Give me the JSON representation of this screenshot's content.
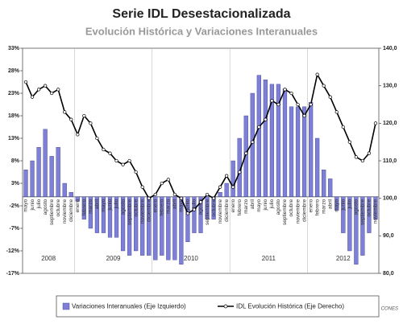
{
  "chart_data": {
    "type": "bar-line",
    "title": "Serie IDL Desestacionalizada",
    "subtitle": "Evolución Histórica y Variaciones Interanuales",
    "source": "CONES",
    "categories": [
      "mayo",
      "junio",
      "julio",
      "agosto",
      "septiembre",
      "octubre",
      "noviembre",
      "diciembre",
      "enero",
      "febrero",
      "marzo",
      "abril",
      "mayo",
      "junio",
      "julio",
      "agosto",
      "septiembre",
      "octubre",
      "noviembre",
      "diciembre",
      "enero",
      "febrero",
      "marzo",
      "abril",
      "mayo",
      "junio",
      "julio",
      "agosto",
      "septiembre",
      "octubre",
      "noviembre",
      "diciembre",
      "enero",
      "febrero",
      "marzo",
      "abril",
      "mayo",
      "junio",
      "julio",
      "agosto",
      "septiembre",
      "octubre",
      "noviembre",
      "diciembre",
      "enero",
      "febrero",
      "marzo",
      "abril",
      "mayo",
      "junio",
      "julio",
      "agosto",
      "septiembre",
      "octubre",
      "noviembre"
    ],
    "years": [
      "2008",
      "2009",
      "2010",
      "2011",
      "2012"
    ],
    "series": [
      {
        "name": "Variaciones Interanuales (Eje Izquierdo)",
        "color": "#7d80d6",
        "axis": "y",
        "values": [
          6,
          8,
          11,
          15,
          9,
          11,
          3,
          1,
          -1,
          -5,
          -7,
          -8,
          -8,
          -9,
          -9,
          -12,
          -13,
          -12,
          -13,
          -13,
          -14,
          -13,
          -14,
          -14,
          -15,
          -10,
          -8,
          -8,
          -5,
          -5,
          1,
          3,
          8,
          13,
          18,
          23,
          27,
          26,
          25,
          25,
          24,
          20,
          20,
          20,
          21,
          13,
          6,
          4,
          -3,
          -8,
          -12,
          -15,
          -13,
          -8,
          -5
        ]
      },
      {
        "name": "IDL Evolución Histórica (Eje Derecho)",
        "color": "#000000",
        "axis": "y2",
        "values": [
          131,
          127,
          129,
          130,
          128,
          129,
          123,
          121,
          117,
          122,
          120,
          116,
          113,
          112,
          110,
          109,
          110,
          107,
          103,
          100,
          101,
          104,
          105,
          101,
          100,
          96,
          97,
          99,
          101,
          100,
          103,
          106,
          103,
          107,
          112,
          115,
          119,
          121,
          126,
          125,
          129,
          128,
          125,
          122,
          125,
          133,
          130,
          127,
          123,
          119,
          115,
          111,
          110,
          112,
          120
        ]
      }
    ],
    "ylim": [
      -17,
      33
    ],
    "yticks": [
      {
        "value": 33,
        "label": "33%"
      },
      {
        "value": 28,
        "label": "28%"
      },
      {
        "value": 23,
        "label": "23%"
      },
      {
        "value": 18,
        "label": "18%"
      },
      {
        "value": 13,
        "label": "13%"
      },
      {
        "value": 8,
        "label": "8%"
      },
      {
        "value": 3,
        "label": "3%"
      },
      {
        "value": -2,
        "label": "-2%"
      },
      {
        "value": -7,
        "label": "-7%"
      },
      {
        "value": -12,
        "label": "-12%"
      },
      {
        "value": -17,
        "label": "-17%"
      }
    ],
    "y2lim": [
      80,
      140
    ],
    "y2ticks": [
      {
        "value": 140,
        "label": "140,0"
      },
      {
        "value": 130,
        "label": "130,0"
      },
      {
        "value": 120,
        "label": "120,0"
      },
      {
        "value": 110,
        "label": "110,0"
      },
      {
        "value": 100,
        "label": "100,0"
      },
      {
        "value": 90,
        "label": "90,0"
      },
      {
        "value": 80,
        "label": "80,0"
      }
    ],
    "grid": false
  }
}
